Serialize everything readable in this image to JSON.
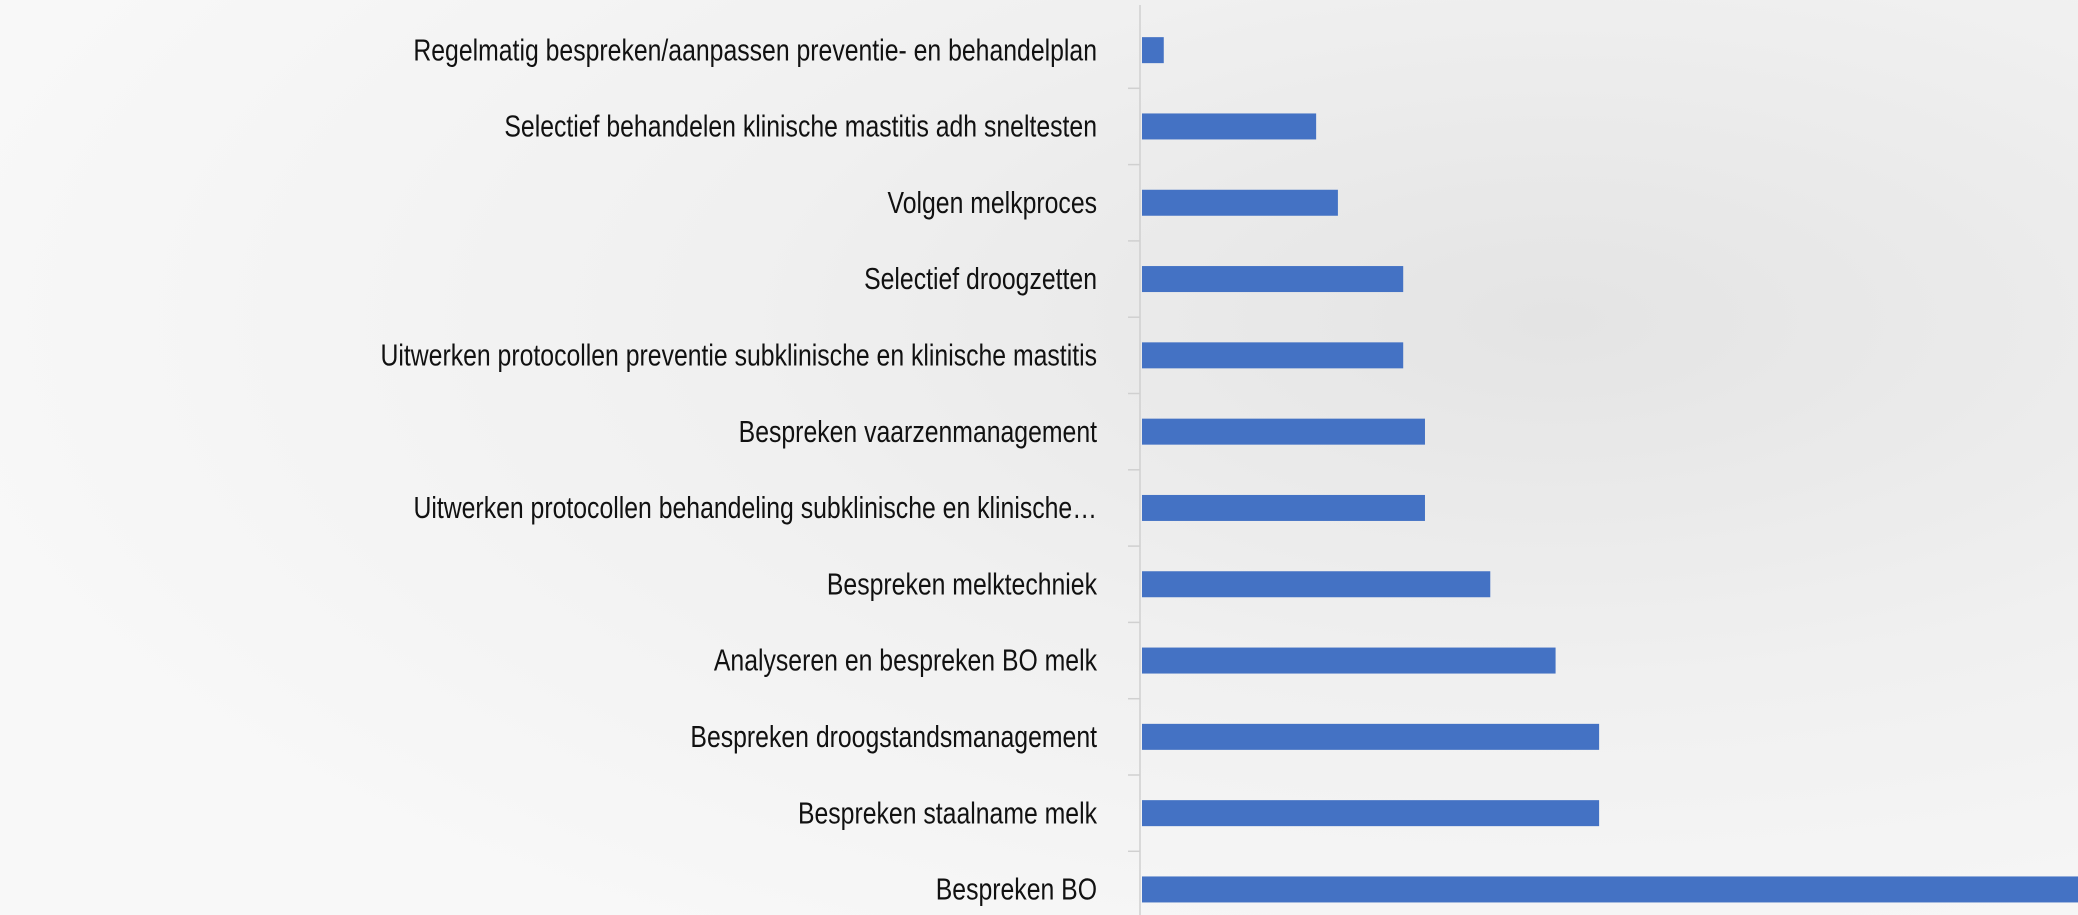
{
  "chart_data": {
    "type": "bar",
    "orientation": "horizontal",
    "categories": [
      "Regelmatig bespreken/aanpassen preventie- en behandelplan",
      "Selectief behandelen klinische mastitis adh sneltesten",
      "Volgen melkproces",
      "Selectief droogzetten",
      "Uitwerken protocollen preventie subklinische en klinische mastitis",
      "Bespreken vaarzenmanagement",
      "Uitwerken protocollen behandeling subklinische en klinische…",
      "Bespreken melktechniek",
      "Analyseren en bespreken BO melk",
      "Bespreken droogstandsmanagement",
      "Bespreken staalname melk",
      "Bespreken BO"
    ],
    "values": [
      1,
      8,
      9,
      12,
      12,
      13,
      13,
      16,
      19,
      21,
      21,
      43
    ],
    "color": "#4472c4",
    "xlim": [
      0,
      43
    ]
  }
}
